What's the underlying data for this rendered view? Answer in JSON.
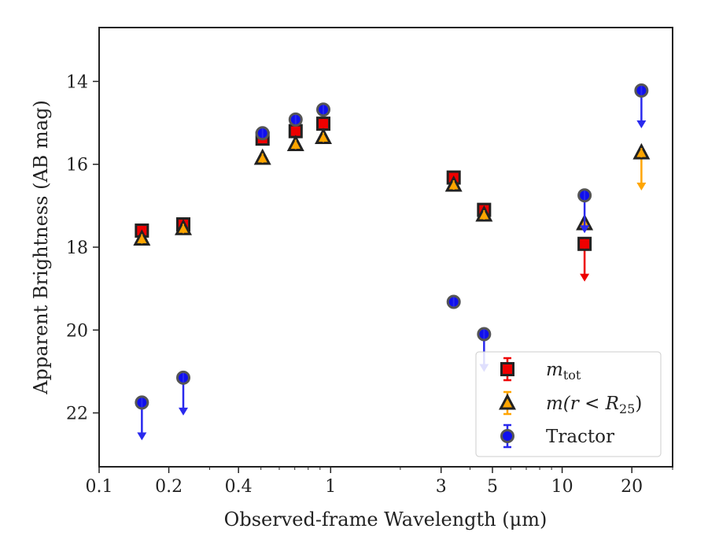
{
  "chart_data": {
    "type": "scatter",
    "xlabel": "Observed-frame Wavelength (μm)",
    "ylabel": "Apparent Brightness (AB mag)",
    "x_scale": "log",
    "y_inverted": true,
    "xlim": [
      0.1,
      30
    ],
    "ylim": [
      23.3,
      12.7
    ],
    "x_ticks": [
      {
        "value": 0.1,
        "label": "0.1"
      },
      {
        "value": 0.2,
        "label": "0.2"
      },
      {
        "value": 0.4,
        "label": "0.4"
      },
      {
        "value": 1,
        "label": "1"
      },
      {
        "value": 3,
        "label": "3"
      },
      {
        "value": 5,
        "label": "5"
      },
      {
        "value": 10,
        "label": "10"
      },
      {
        "value": 20,
        "label": "20"
      }
    ],
    "y_ticks": [
      {
        "value": 14,
        "label": "14"
      },
      {
        "value": 16,
        "label": "16"
      },
      {
        "value": 18,
        "label": "18"
      },
      {
        "value": 20,
        "label": "20"
      },
      {
        "value": 22,
        "label": "22"
      }
    ],
    "legend": {
      "position": "lower right",
      "entries": [
        {
          "label_main": "m",
          "label_sub": "tot",
          "label_suffix": "",
          "series": "mtot"
        },
        {
          "label_main": "m(r < R",
          "label_sub": "25",
          "label_suffix": ")",
          "series": "mr25"
        },
        {
          "label_main": "Tractor",
          "label_sub": "",
          "label_suffix": "",
          "series": "tractor"
        }
      ]
    },
    "series": [
      {
        "id": "mtot",
        "marker": "square",
        "color": "#ee0000",
        "errorbar_color": "#ee0000",
        "points": [
          {
            "x": 0.153,
            "y": 17.6
          },
          {
            "x": 0.231,
            "y": 17.45
          },
          {
            "x": 0.508,
            "y": 15.38
          },
          {
            "x": 0.706,
            "y": 15.2
          },
          {
            "x": 0.93,
            "y": 15.02
          },
          {
            "x": 3.4,
            "y": 16.32
          },
          {
            "x": 4.6,
            "y": 17.1
          },
          {
            "x": 12.5,
            "y": 17.92,
            "upper_limit": true
          }
        ]
      },
      {
        "id": "mr25",
        "marker": "triangle",
        "color": "#ffa500",
        "errorbar_color": "#ffa500",
        "points": [
          {
            "x": 0.153,
            "y": 17.8
          },
          {
            "x": 0.231,
            "y": 17.55
          },
          {
            "x": 0.508,
            "y": 15.85
          },
          {
            "x": 0.706,
            "y": 15.52
          },
          {
            "x": 0.93,
            "y": 15.35
          },
          {
            "x": 3.4,
            "y": 16.5
          },
          {
            "x": 4.6,
            "y": 17.22
          },
          {
            "x": 12.5,
            "y": 17.43
          },
          {
            "x": 22.0,
            "y": 15.72,
            "upper_limit": true
          }
        ]
      },
      {
        "id": "tractor",
        "marker": "circle",
        "color": "#1010ee",
        "errorbar_color": "#2a2aee",
        "points": [
          {
            "x": 0.153,
            "y": 21.75,
            "upper_limit": true
          },
          {
            "x": 0.231,
            "y": 21.15,
            "upper_limit": true
          },
          {
            "x": 0.508,
            "y": 15.25
          },
          {
            "x": 0.706,
            "y": 14.92
          },
          {
            "x": 0.93,
            "y": 14.68
          },
          {
            "x": 3.4,
            "y": 19.32
          },
          {
            "x": 4.6,
            "y": 20.1,
            "upper_limit": true
          },
          {
            "x": 12.5,
            "y": 16.75,
            "upper_limit": true
          },
          {
            "x": 22.0,
            "y": 14.22,
            "upper_limit": true
          }
        ]
      }
    ]
  }
}
